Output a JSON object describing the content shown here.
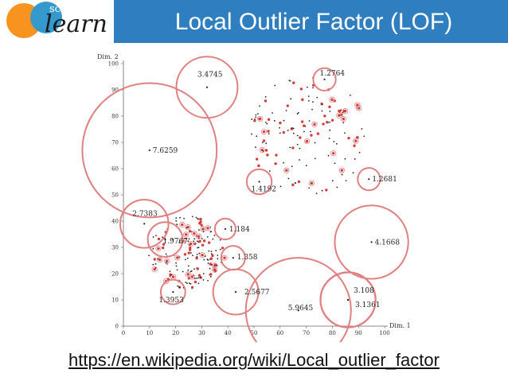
{
  "header": {
    "title": "Local Outlier Factor (LOF)",
    "logo": {
      "small_text": "scikit",
      "big_text": "learn",
      "colors": [
        "#f7931e",
        "#3499cd"
      ]
    }
  },
  "footer": {
    "link_text": "https://en.wikipedia.org/wiki/Local_outlier_factor"
  },
  "colors": {
    "header_bg": "#2f7fc0",
    "circle": "#e08080",
    "dot_black": "#222222",
    "dot_red": "#d83a3a"
  },
  "chart_data": {
    "type": "scatter",
    "xlabel": "Dim. 1",
    "ylabel": "Dim. 2",
    "xlim": [
      0,
      100
    ],
    "ylim": [
      0,
      100
    ],
    "xticks": [
      0,
      10,
      20,
      30,
      40,
      50,
      60,
      70,
      80,
      90,
      100
    ],
    "yticks": [
      0,
      10,
      20,
      30,
      40,
      50,
      60,
      70,
      80,
      90,
      100
    ],
    "grid": false,
    "outliers": [
      {
        "x": 32,
        "y": 91,
        "label": "3.4745",
        "score": 3.4745
      },
      {
        "x": 10,
        "y": 67,
        "label": "7.6259",
        "score": 7.6259
      },
      {
        "x": 77,
        "y": 94,
        "label": "1.2764",
        "score": 1.2764
      },
      {
        "x": 94,
        "y": 56,
        "label": "1.2681",
        "score": 1.2681
      },
      {
        "x": 52,
        "y": 55,
        "label": "1.4192",
        "score": 1.4192
      },
      {
        "x": 8,
        "y": 39,
        "label": "2.7383",
        "score": 2.7383
      },
      {
        "x": 16,
        "y": 33,
        "label": "1.9767",
        "score": 1.9767
      },
      {
        "x": 39,
        "y": 37,
        "label": "1.184",
        "score": 1.184
      },
      {
        "x": 42,
        "y": 26,
        "label": "1.358",
        "score": 1.358
      },
      {
        "x": 95,
        "y": 32,
        "label": "4.1668",
        "score": 4.1668
      },
      {
        "x": 43,
        "y": 13,
        "label": "2.5677",
        "score": 2.5677
      },
      {
        "x": 19,
        "y": 13,
        "label": "1.3953",
        "score": 1.3953
      },
      {
        "x": 86,
        "y": 10,
        "label": "3.108",
        "score": 3.108
      },
      {
        "x": 86,
        "y": 10,
        "label": "3.1361",
        "score": 3.1361
      },
      {
        "x": 67,
        "y": 6,
        "label": "5.9645",
        "score": 5.9645
      }
    ]
  }
}
